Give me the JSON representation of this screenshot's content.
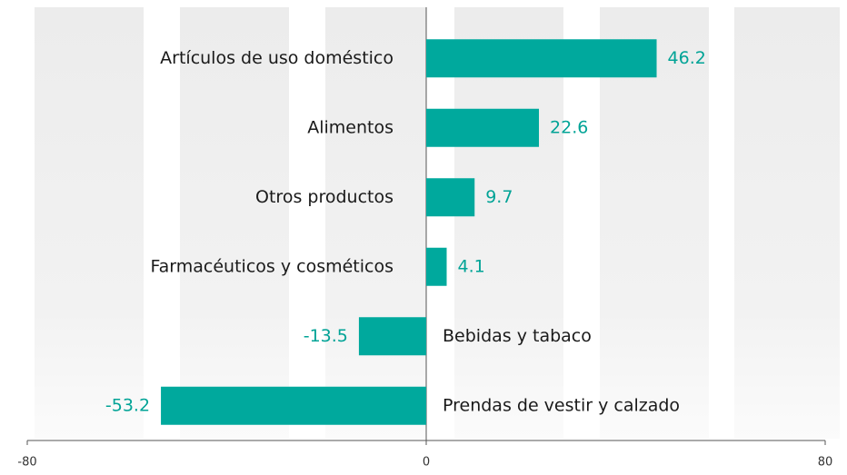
{
  "chart_data": {
    "type": "bar",
    "orientation": "horizontal",
    "categories": [
      "Artículos de uso doméstico",
      "Alimentos",
      "Otros productos",
      "Farmacéuticos y cosméticos",
      "Bebidas y tabaco",
      "Prendas de vestir y calzado"
    ],
    "values": [
      46.2,
      22.6,
      9.7,
      4.1,
      -13.5,
      -53.2
    ],
    "color": "#00a99d",
    "xlim": [
      -80,
      80
    ],
    "xticks": [
      -80,
      0,
      80
    ]
  }
}
